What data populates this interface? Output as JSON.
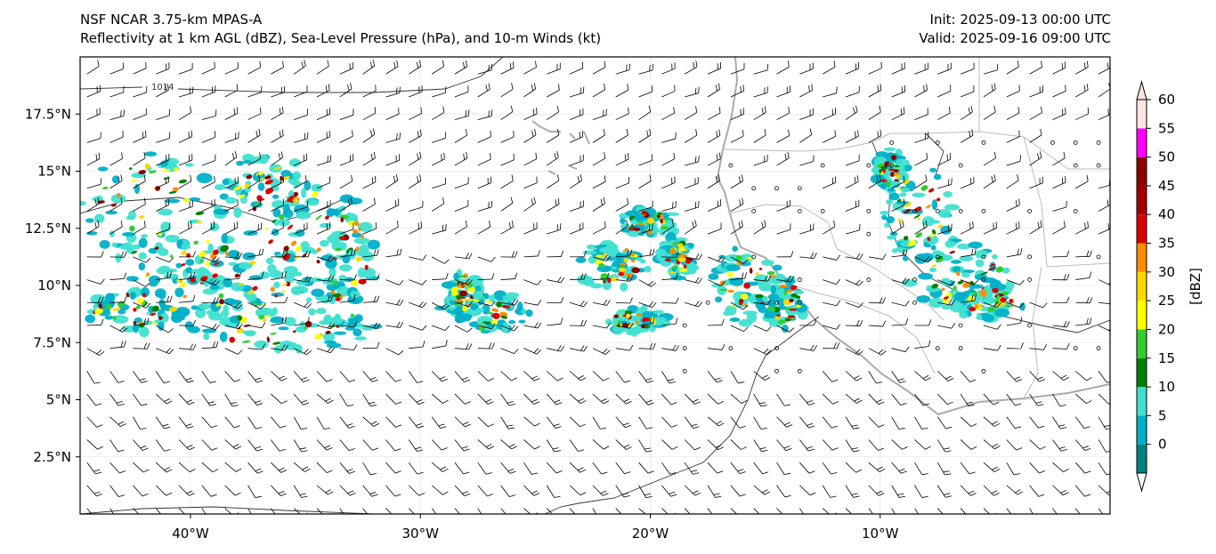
{
  "header": {
    "model": "NSF NCAR 3.75-km MPAS-A",
    "fields": "Reflectivity at 1 km AGL (dBZ), Sea-Level Pressure (hPa), and 10-m Winds (kt)",
    "init": "Init: 2025-09-13 00:00 UTC",
    "valid": "Valid: 2025-09-16 09:00 UTC"
  },
  "map": {
    "lon_range": [
      -44.8,
      0.0
    ],
    "lat_range": [
      0.0,
      20.0
    ],
    "x_ticks": [
      {
        "lon": -40,
        "label": "40°W"
      },
      {
        "lon": -30,
        "label": "30°W"
      },
      {
        "lon": -20,
        "label": "20°W"
      },
      {
        "lon": -10,
        "label": "10°W"
      }
    ],
    "y_ticks": [
      {
        "lat": 2.5,
        "label": "2.5°N"
      },
      {
        "lat": 5,
        "label": "5°N"
      },
      {
        "lat": 7.5,
        "label": "7.5°N"
      },
      {
        "lat": 10,
        "label": "10°N"
      },
      {
        "lat": 12.5,
        "label": "12.5°N"
      },
      {
        "lat": 15,
        "label": "15°N"
      },
      {
        "lat": 17.5,
        "label": "17.5°N"
      }
    ],
    "contour_label": "1014",
    "gridlines": true
  },
  "colorbar": {
    "unit_label": "[dBZ]",
    "levels": [
      0,
      5,
      10,
      15,
      20,
      25,
      30,
      35,
      40,
      45,
      50,
      55,
      60
    ],
    "colors": [
      "#008080",
      "#00b0c8",
      "#40e0d0",
      "#008000",
      "#32cd32",
      "#ffff00",
      "#ffd700",
      "#ff8c00",
      "#dc0000",
      "#a00000",
      "#8b0000",
      "#ff00ff",
      "#ffe4e1"
    ]
  }
}
